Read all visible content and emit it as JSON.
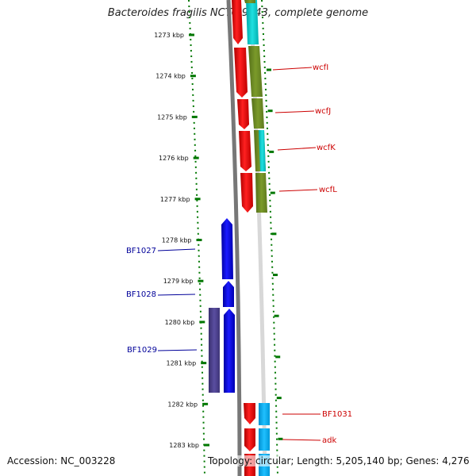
{
  "title": "Bacteroides fragilis NCTC 9343, complete genome",
  "footer": {
    "accession": "Accession: NC_003228",
    "summary": "Topology: circular; Length: 5,205,140 bp; Genes: 4,276"
  },
  "colors": {
    "forward_gene": "#ee0000",
    "forward_label": "#cc0000",
    "reverse_gene": "#0000ee",
    "reverse_label": "#000099",
    "operon_olive": "#6b8e23",
    "operon_cyan": "#00cccc",
    "operon_sky": "#00aaee",
    "operon_purple": "#4b3f8a",
    "backbone": "#808080",
    "tick": "#007700"
  },
  "axis": {
    "ticks": [
      "1273 kbp",
      "1274 kbp",
      "1275 kbp",
      "1276 kbp",
      "1277 kbp",
      "1278 kbp",
      "1279 kbp",
      "1280 kbp",
      "1281 kbp",
      "1282 kbp",
      "1283 kbp"
    ]
  },
  "gene_labels": {
    "forward": [
      "wcfI",
      "wcfJ",
      "wcfK",
      "wcfL",
      "BF1031",
      "adk"
    ],
    "reverse": [
      "BF1027",
      "BF1028",
      "BF1029"
    ]
  }
}
